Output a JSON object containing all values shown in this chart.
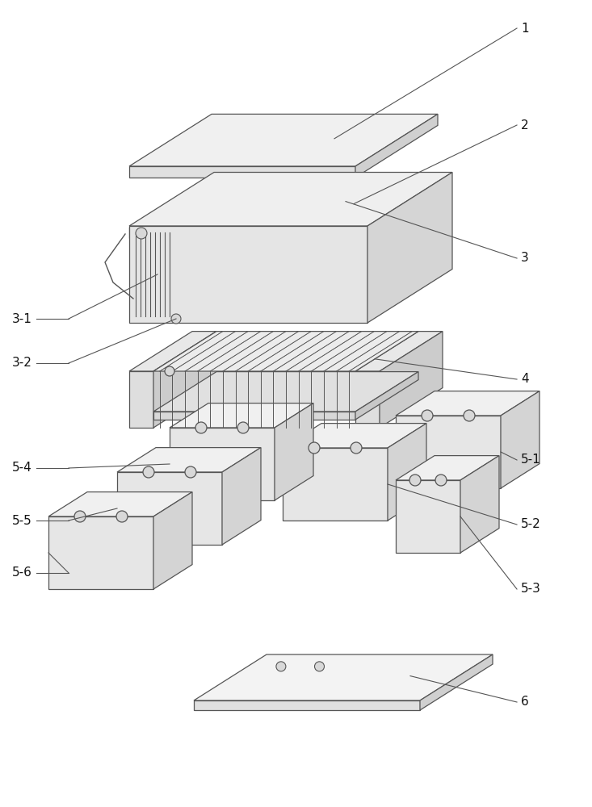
{
  "bg_color": "#ffffff",
  "lc": "#555555",
  "lw": 0.9,
  "fc_top": "#f0f0f0",
  "fc_front": "#e4e4e4",
  "fc_side": "#d0d0d0",
  "fc_plate_top": "#f5f5f5",
  "fc_heatsink": "#e8e8e8",
  "label_fs": 11,
  "label_color": "#111111"
}
